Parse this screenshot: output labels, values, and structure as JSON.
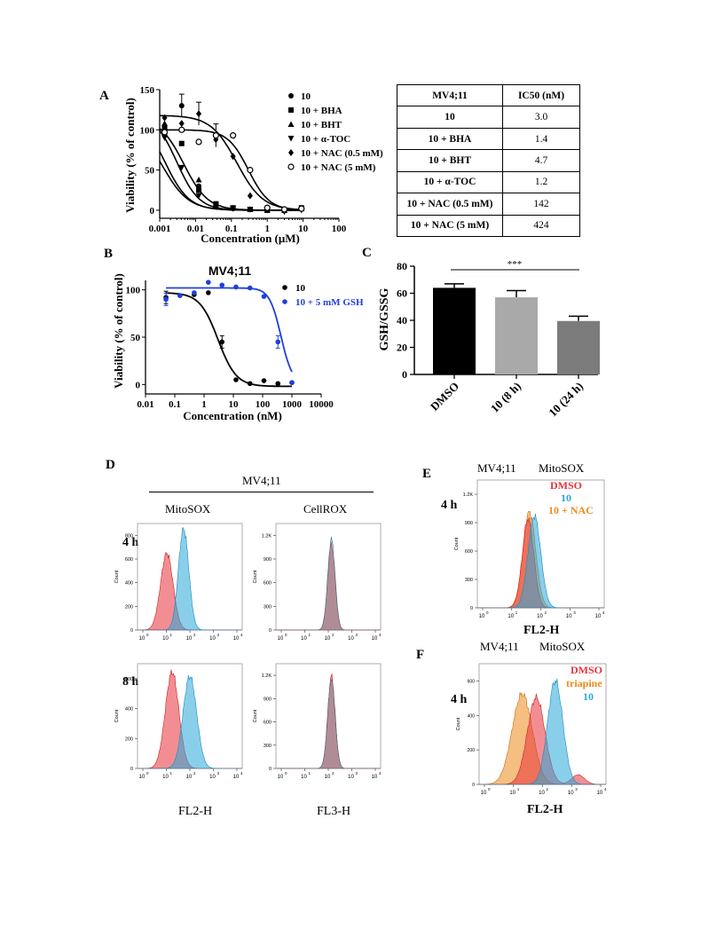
{
  "panels": {
    "A": "A",
    "B": "B",
    "C": "C",
    "D": "D",
    "E": "E",
    "F": "F"
  },
  "panelA": {
    "ylabel": "Viability (% of control)",
    "xlabel": "Concentration (μM)",
    "yticks": [
      "0",
      "50",
      "100",
      "150"
    ],
    "xticks": [
      "0.001",
      "0.01",
      "0.1",
      "1",
      "10",
      "100"
    ],
    "legend": [
      {
        "marker": "circle",
        "label": "10"
      },
      {
        "marker": "square",
        "label": "10 + BHA"
      },
      {
        "marker": "triangle-up",
        "label": "10 + BHT"
      },
      {
        "marker": "triangle-down",
        "label": "10 + α-TOC"
      },
      {
        "marker": "diamond",
        "label": "10 + NAC (0.5 mM)"
      },
      {
        "marker": "open-circle",
        "label": "10 + NAC (5 mM)"
      }
    ]
  },
  "ic50_table": {
    "headers": [
      "MV4;11",
      "IC50 (nM)"
    ],
    "rows": [
      [
        "10",
        "3.0"
      ],
      [
        "10 + BHA",
        "1.4"
      ],
      [
        "10 + BHT",
        "4.7"
      ],
      [
        "10 + α-TOC",
        "1.2"
      ],
      [
        "10 + NAC (0.5 mM)",
        "142"
      ],
      [
        "10 + NAC (5 mM)",
        "424"
      ]
    ]
  },
  "panelB": {
    "title": "MV4;11",
    "ylabel": "Viability (% of control)",
    "xlabel": "Concentration (nM)",
    "yticks": [
      "0",
      "50",
      "100"
    ],
    "xticks": [
      "0.01",
      "0.1",
      "1",
      "10",
      "100",
      "1000",
      "10000"
    ],
    "legend": [
      {
        "label": "10",
        "color": "#000000"
      },
      {
        "label": "10 + 5 mM GSH",
        "color": "#1f3fdc"
      }
    ]
  },
  "panelC": {
    "ylabel": "GSH/GSSG",
    "yticks": [
      "0",
      "20",
      "40",
      "60",
      "80"
    ],
    "significance": "***"
  },
  "panelD": {
    "cell_line": "MV4;11",
    "col1": "MitoSOX",
    "col2": "CellROX",
    "row1": "4 h",
    "row2": "8 h",
    "xlabel1": "FL2-H",
    "xlabel2": "FL3-H",
    "count_label": "Count",
    "xticks": [
      "10",
      "10",
      "10",
      "10",
      "10"
    ],
    "xexps": [
      "0",
      "1",
      "2",
      "3",
      "4"
    ],
    "yticks_mito4": [
      "0",
      "200",
      "400",
      "600",
      "800"
    ],
    "yticks_cell": [
      "0",
      "300",
      "600",
      "900",
      "1.2K"
    ],
    "yticks_mito8": [
      "0",
      "200",
      "400",
      "600"
    ]
  },
  "panelE": {
    "cell_line": "MV4;11",
    "probe": "MitoSOX",
    "time": "4 h",
    "legend": [
      {
        "label": "DMSO",
        "color": "#e8323a"
      },
      {
        "label": "10",
        "color": "#2aa8d8"
      },
      {
        "label": "10 + NAC",
        "color": "#ef8a1c"
      }
    ],
    "yticks": [
      "0",
      "300",
      "600",
      "900",
      "1.2K"
    ],
    "xlabel": "FL2-H",
    "count_label": "Count"
  },
  "panelF": {
    "cell_line": "MV4;11",
    "probe": "MitoSOX",
    "time": "4 h",
    "legend": [
      {
        "label": "DMSO",
        "color": "#e8323a"
      },
      {
        "label": "triapine",
        "color": "#ef8a1c"
      },
      {
        "label": "10",
        "color": "#2aa8d8"
      }
    ],
    "yticks": [
      "0",
      "200",
      "400",
      "600"
    ],
    "xlabel": "FL2-H",
    "count_label": "Count"
  },
  "chart_data": [
    {
      "type": "scatter",
      "panel": "A",
      "xlabel": "Concentration (μM)",
      "ylabel": "Viability (% of control)",
      "xscale": "log",
      "xlim": [
        0.001,
        100
      ],
      "ylim": [
        -10,
        150
      ],
      "series": [
        {
          "name": "10",
          "x": [
            0.00137,
            0.0041,
            0.0123,
            0.037,
            0.111,
            0.333,
            1,
            3,
            9
          ],
          "y": [
            95,
            130,
            30,
            6,
            2,
            1,
            0,
            0,
            2
          ]
        },
        {
          "name": "10 + BHA",
          "x": [
            0.00137,
            0.0041,
            0.0123,
            0.037,
            0.111,
            0.333,
            1,
            3,
            9
          ],
          "y": [
            103,
            83,
            25,
            8,
            3,
            1,
            0,
            0,
            3
          ]
        },
        {
          "name": "10 + BHT",
          "x": [
            0.00137,
            0.0041,
            0.0123,
            0.037,
            0.111,
            0.333,
            1,
            3,
            9
          ],
          "y": [
            108,
            101,
            38,
            6,
            3,
            1,
            0,
            0,
            2
          ]
        },
        {
          "name": "10 + α-TOC",
          "x": [
            0.00137,
            0.0041,
            0.0123,
            0.037,
            0.111,
            0.333,
            1,
            3,
            9
          ],
          "y": [
            90,
            53,
            18,
            6,
            2,
            1,
            0,
            -2,
            0
          ]
        },
        {
          "name": "10 + NAC (0.5 mM)",
          "x": [
            0.00137,
            0.0041,
            0.0123,
            0.037,
            0.111,
            0.333,
            1,
            3,
            9
          ],
          "y": [
            115,
            108,
            120,
            88,
            67,
            18,
            3,
            0,
            2
          ]
        },
        {
          "name": "10 + NAC (5 mM)",
          "x": [
            0.00137,
            0.0041,
            0.0123,
            0.037,
            0.111,
            0.333,
            1,
            3,
            9
          ],
          "y": [
            97,
            100,
            85,
            93,
            93,
            50,
            3,
            1,
            2
          ]
        }
      ]
    },
    {
      "type": "scatter",
      "panel": "B",
      "title": "MV4;11",
      "xlabel": "Concentration (nM)",
      "ylabel": "Viability (% of control)",
      "xscale": "log",
      "xlim": [
        0.01,
        10000
      ],
      "ylim": [
        -10,
        110
      ],
      "series": [
        {
          "name": "10",
          "x": [
            0.05,
            0.15,
            0.46,
            1.4,
            4.1,
            12.3,
            37,
            111,
            333,
            1000
          ],
          "y": [
            92,
            94,
            95,
            97,
            45,
            5,
            1,
            4,
            1,
            2
          ]
        },
        {
          "name": "10 + 5 mM GSH",
          "x": [
            0.05,
            0.15,
            0.46,
            1.4,
            4.1,
            12.3,
            37,
            111,
            333,
            1000
          ],
          "y": [
            90,
            94,
            97,
            108,
            105,
            103,
            102,
            93,
            45,
            2
          ]
        }
      ]
    },
    {
      "type": "bar",
      "panel": "C",
      "categories": [
        "DMSO",
        "10 (8 h)",
        "10 (24 h)"
      ],
      "values": [
        64,
        57,
        39.5
      ],
      "errors": [
        3,
        5,
        3.5
      ],
      "colors": [
        "#000000",
        "#a9a9a9",
        "#7b7b7b"
      ],
      "ylabel": "GSH/GSSG",
      "ylim": [
        0,
        80
      ]
    }
  ]
}
